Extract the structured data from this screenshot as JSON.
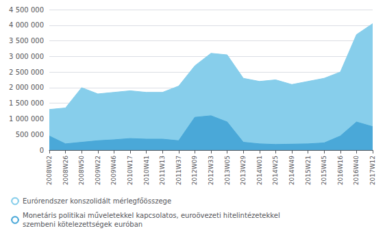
{
  "chart_data": {
    "type": "area",
    "categories": [
      "2008W02",
      "2008W26",
      "2008W50",
      "2009W22",
      "2009W46",
      "2010W17",
      "2010W41",
      "2011W13",
      "2011W37",
      "2012W09",
      "2012W33",
      "2013W05",
      "2013W29",
      "2014W01",
      "2014W25",
      "2014W49",
      "2015W21",
      "2015W45",
      "2016W16",
      "2016W40",
      "2017W12"
    ],
    "series": [
      {
        "name": "Eurórendszer konszolidált mérlegfőösszege",
        "color": "#87CEEB",
        "values": [
          1300000,
          1350000,
          2000000,
          1800000,
          1850000,
          1900000,
          1850000,
          1850000,
          2050000,
          2700000,
          3100000,
          3050000,
          2300000,
          2200000,
          2250000,
          2100000,
          2200000,
          2300000,
          2500000,
          3700000,
          4050000
        ]
      },
      {
        "name": "Monetáris politikai műveletekkel kapcsolatos, euroövezeti hitelintézetekkel\nszembeni kötelezettségek euróban",
        "color": "#4AA8D8",
        "values": [
          450000,
          200000,
          250000,
          300000,
          330000,
          370000,
          350000,
          350000,
          300000,
          1050000,
          1100000,
          900000,
          250000,
          200000,
          180000,
          190000,
          200000,
          230000,
          450000,
          900000,
          750000
        ]
      }
    ],
    "ylim": [
      0,
      4500000
    ],
    "yticks": [
      0,
      {
        "value": 500000,
        "label": "500 000"
      },
      {
        "value": 1000000,
        "label": "1 000 000"
      },
      {
        "value": 1500000,
        "label": "1 500 000"
      },
      {
        "value": 2000000,
        "label": "2 000 000"
      },
      {
        "value": 2500000,
        "label": "2 500 000"
      },
      {
        "value": 3000000,
        "label": "3 000 000"
      },
      {
        "value": 3500000,
        "label": "3 500 000"
      },
      {
        "value": 4000000,
        "label": "4 000 000"
      },
      {
        "value": 4500000,
        "label": "4 500 000"
      }
    ],
    "grid": true,
    "legend": "bottom",
    "stacked": false
  }
}
